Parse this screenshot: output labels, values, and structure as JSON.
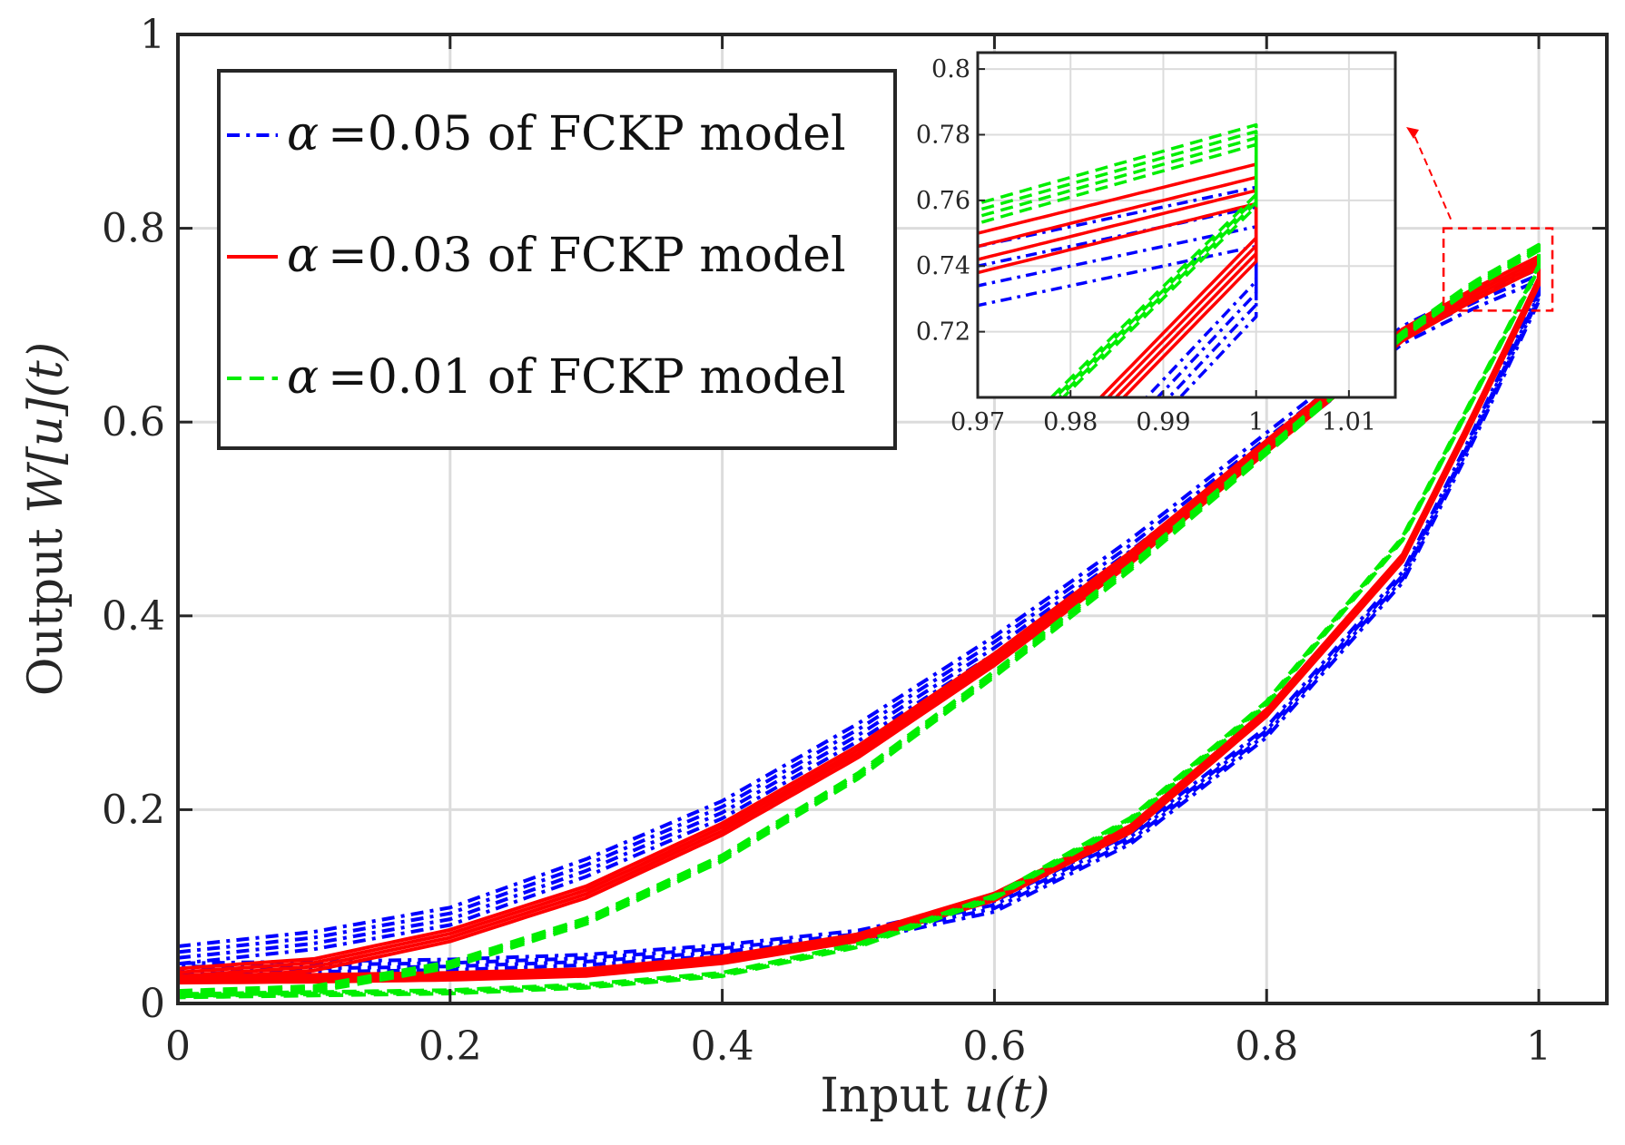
{
  "chart_data": {
    "type": "line",
    "title": "",
    "xlabel": "Input u(t)",
    "ylabel": "Output W[u](t)",
    "xlabel_parts": {
      "prefix": "Input ",
      "math": "u(t)"
    },
    "ylabel_parts": {
      "prefix": "Output ",
      "math": "W[u](t)"
    },
    "xlim": [
      0,
      1.05
    ],
    "ylim": [
      0,
      1
    ],
    "grid": true,
    "x_ticks": [
      {
        "value": 0,
        "label": "0"
      },
      {
        "value": 0.2,
        "label": "0.2"
      },
      {
        "value": 0.4,
        "label": "0.4"
      },
      {
        "value": 0.6,
        "label": "0.6"
      },
      {
        "value": 0.8,
        "label": "0.8"
      },
      {
        "value": 1,
        "label": "1"
      }
    ],
    "y_ticks": [
      {
        "value": 0,
        "label": "0"
      },
      {
        "value": 0.2,
        "label": "0.2"
      },
      {
        "value": 0.4,
        "label": "0.4"
      },
      {
        "value": 0.6,
        "label": "0.6"
      },
      {
        "value": 0.8,
        "label": "0.8"
      },
      {
        "value": 1,
        "label": "1"
      }
    ],
    "legend_position": "top-left",
    "series": [
      {
        "name": "α =0.05 of FCKP model",
        "symbol": "α",
        "label": "=0.05 of FCKP model",
        "color": "#0000ff",
        "style": "dashdot",
        "ascending": {
          "x": [
            0,
            0.1,
            0.2,
            0.3,
            0.4,
            0.5,
            0.6,
            0.7,
            0.8,
            0.9,
            0.95,
            1.0
          ],
          "y": [
            0.05,
            0.065,
            0.09,
            0.14,
            0.2,
            0.28,
            0.37,
            0.47,
            0.58,
            0.69,
            0.725,
            0.755
          ]
        },
        "descending": {
          "x": [
            1.0,
            0.95,
            0.9,
            0.8,
            0.7,
            0.6,
            0.5,
            0.4,
            0.3,
            0.2,
            0.1,
            0
          ],
          "y": [
            0.73,
            0.58,
            0.44,
            0.28,
            0.17,
            0.1,
            0.07,
            0.055,
            0.045,
            0.04,
            0.038,
            0.036
          ]
        },
        "band": 0.018
      },
      {
        "name": "α =0.03 of FCKP model",
        "symbol": "α",
        "label": "=0.03 of FCKP model",
        "color": "#ff0000",
        "style": "solid",
        "ascending": {
          "x": [
            0,
            0.1,
            0.2,
            0.3,
            0.4,
            0.5,
            0.6,
            0.7,
            0.8,
            0.9,
            0.95,
            1.0
          ],
          "y": [
            0.03,
            0.04,
            0.07,
            0.115,
            0.18,
            0.26,
            0.355,
            0.46,
            0.575,
            0.69,
            0.73,
            0.765
          ]
        },
        "descending": {
          "x": [
            1.0,
            0.95,
            0.9,
            0.8,
            0.7,
            0.6,
            0.5,
            0.4,
            0.3,
            0.2,
            0.1,
            0
          ],
          "y": [
            0.745,
            0.6,
            0.46,
            0.3,
            0.18,
            0.11,
            0.068,
            0.045,
            0.032,
            0.028,
            0.026,
            0.025
          ]
        },
        "band": 0.012
      },
      {
        "name": "α =0.01 of FCKP model",
        "symbol": "α",
        "label": "=0.01 of FCKP model",
        "color": "#00ee00",
        "style": "dashed",
        "ascending": {
          "x": [
            0,
            0.1,
            0.2,
            0.3,
            0.4,
            0.5,
            0.6,
            0.7,
            0.8,
            0.9,
            0.95,
            1.0
          ],
          "y": [
            0.01,
            0.015,
            0.04,
            0.085,
            0.15,
            0.235,
            0.34,
            0.45,
            0.57,
            0.69,
            0.74,
            0.78
          ]
        },
        "descending": {
          "x": [
            1.0,
            0.95,
            0.9,
            0.8,
            0.7,
            0.6,
            0.5,
            0.4,
            0.3,
            0.2,
            0.1,
            0
          ],
          "y": [
            0.76,
            0.62,
            0.48,
            0.31,
            0.19,
            0.11,
            0.06,
            0.03,
            0.018,
            0.012,
            0.01,
            0.008
          ]
        },
        "band": 0.006
      }
    ],
    "inset": {
      "xlim": [
        0.97,
        1.015
      ],
      "ylim": [
        0.7,
        0.805
      ],
      "x_ticks": [
        {
          "value": 0.97,
          "label": "0.97"
        },
        {
          "value": 0.98,
          "label": "0.98"
        },
        {
          "value": 0.99,
          "label": "0.99"
        },
        {
          "value": 1.0,
          "label": "1"
        },
        {
          "value": 1.01,
          "label": "1.01"
        }
      ],
      "y_ticks": [
        {
          "value": 0.72,
          "label": "0.72"
        },
        {
          "value": 0.74,
          "label": "0.74"
        },
        {
          "value": 0.76,
          "label": "0.76"
        },
        {
          "value": 0.78,
          "label": "0.78"
        },
        {
          "value": 0.8,
          "label": "0.8"
        }
      ],
      "zoom_region": {
        "x": [
          0.93,
          1.01
        ],
        "y": [
          0.715,
          0.8
        ]
      }
    }
  }
}
